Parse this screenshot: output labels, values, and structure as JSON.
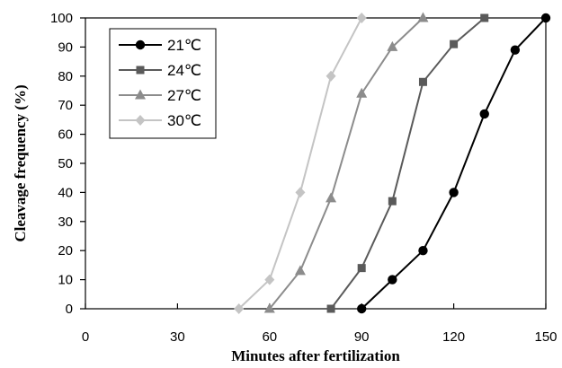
{
  "chart_data": {
    "type": "line",
    "xlabel": "Minutes after fertilization",
    "ylabel": "Cleavage frequency (%)",
    "xlim": [
      0,
      150
    ],
    "ylim": [
      0,
      100
    ],
    "xticks": [
      0,
      30,
      60,
      90,
      120,
      150
    ],
    "yticks": [
      0,
      10,
      20,
      30,
      40,
      50,
      60,
      70,
      80,
      90,
      100
    ],
    "grid": false,
    "legend_position": "top-left",
    "series": [
      {
        "name": "21℃",
        "marker": "circle",
        "color": "#000000",
        "x": [
          90,
          100,
          110,
          120,
          130,
          140,
          150
        ],
        "y": [
          0,
          10,
          20,
          40,
          67,
          89,
          100
        ]
      },
      {
        "name": "24℃",
        "marker": "square",
        "color": "#5a5a5a",
        "x": [
          80,
          90,
          100,
          110,
          120,
          130
        ],
        "y": [
          0,
          14,
          37,
          78,
          91,
          100
        ]
      },
      {
        "name": "27℃",
        "marker": "triangle",
        "color": "#8c8c8c",
        "x": [
          60,
          70,
          80,
          90,
          100,
          110
        ],
        "y": [
          0,
          13,
          38,
          74,
          90,
          100
        ]
      },
      {
        "name": "30℃",
        "marker": "diamond",
        "color": "#c4c4c4",
        "x": [
          50,
          60,
          70,
          80,
          90
        ],
        "y": [
          0,
          10,
          40,
          80,
          100
        ]
      }
    ]
  }
}
